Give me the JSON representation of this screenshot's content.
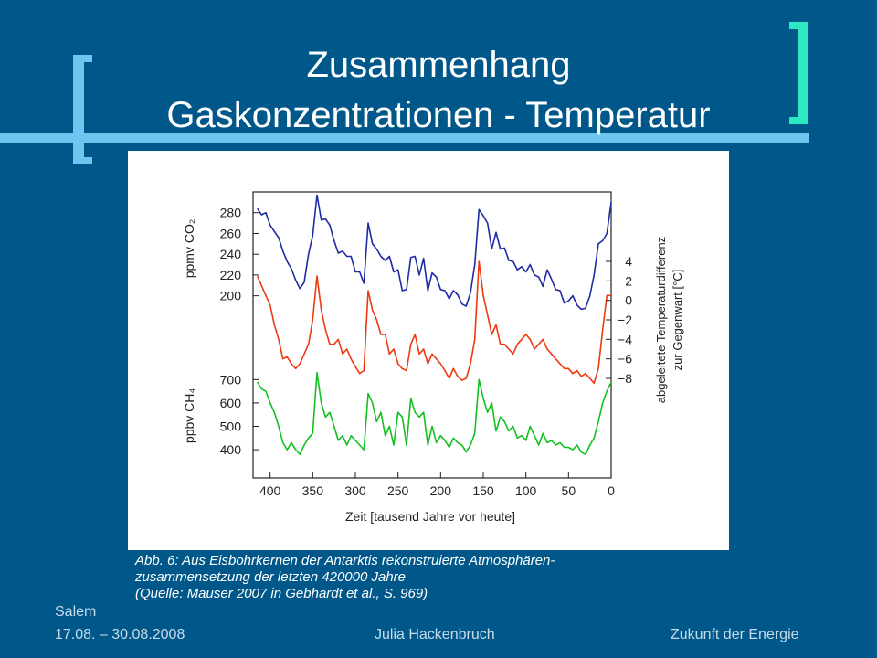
{
  "slide": {
    "title_line1": "Zusammenhang",
    "title_line2": "Gaskonzentrationen - Temperatur",
    "caption": [
      "Abb. 6: Aus Eisbohrkernen der Antarktis rekonstruierte Atmosphären-",
      "zusammensetzung der letzten 420000 Jahre",
      "(Quelle: Mauser 2007 in Gebhardt et al., S. 969)"
    ],
    "footer": {
      "place": "Salem",
      "date": "17.08. – 30.08.2008",
      "author": "Julia Hackenbruch",
      "topic": "Zukunft der Energie"
    },
    "colors": {
      "background": "#00578a",
      "title": "#ffffff",
      "bracket_left": "#6dc5f0",
      "bracket_right": "#2ee8c0"
    }
  },
  "chart_data": {
    "type": "line",
    "xlabel": "Zeit [tausend Jahre vor heute]",
    "x_ticks": [
      "400",
      "350",
      "300",
      "250",
      "200",
      "150",
      "100",
      "50",
      "0"
    ],
    "xlim": [
      0,
      420
    ],
    "x_reversed": true,
    "co2": {
      "ylabel": "ppmv CO₂",
      "ticks": [
        "280",
        "260",
        "240",
        "220",
        "200"
      ],
      "ylim": [
        190,
        300
      ],
      "color": "#1f2aa6",
      "x": [
        415,
        410,
        405,
        400,
        395,
        390,
        385,
        380,
        375,
        370,
        365,
        360,
        355,
        350,
        345,
        340,
        335,
        330,
        325,
        320,
        315,
        310,
        305,
        300,
        295,
        290,
        285,
        280,
        275,
        270,
        265,
        260,
        255,
        250,
        245,
        240,
        235,
        230,
        225,
        220,
        215,
        210,
        205,
        200,
        195,
        190,
        185,
        180,
        175,
        170,
        165,
        160,
        155,
        150,
        145,
        140,
        135,
        130,
        125,
        120,
        115,
        110,
        105,
        100,
        95,
        90,
        85,
        80,
        75,
        70,
        65,
        60,
        55,
        50,
        45,
        40,
        35,
        30,
        25,
        20,
        15,
        10,
        5,
        0
      ],
      "values": [
        284,
        278,
        280,
        268,
        262,
        256,
        243,
        233,
        226,
        215,
        207,
        213,
        240,
        258,
        297,
        273,
        274,
        268,
        253,
        241,
        243,
        238,
        238,
        223,
        223,
        212,
        270,
        250,
        245,
        238,
        234,
        238,
        223,
        225,
        205,
        206,
        237,
        238,
        220,
        236,
        205,
        222,
        218,
        206,
        205,
        197,
        205,
        201,
        192,
        190,
        203,
        230,
        283,
        277,
        270,
        245,
        261,
        245,
        246,
        234,
        233,
        225,
        228,
        223,
        230,
        220,
        218,
        209,
        225,
        216,
        206,
        205,
        193,
        195,
        200,
        191,
        187,
        188,
        200,
        220,
        250,
        253,
        260,
        290
      ]
    },
    "temperature": {
      "ylabel": "abgeleitete Temperaturdifferenz zur Gegenwart [°C]",
      "ticks": [
        "4",
        "2",
        "0",
        "-2",
        "-4",
        "-6",
        "-8"
      ],
      "ylim": [
        -9.5,
        5.5
      ],
      "color": "#ee3a10",
      "x": [
        415,
        410,
        405,
        400,
        395,
        390,
        385,
        380,
        375,
        370,
        365,
        360,
        355,
        350,
        345,
        340,
        335,
        330,
        325,
        320,
        315,
        310,
        305,
        300,
        295,
        290,
        285,
        280,
        275,
        270,
        265,
        260,
        255,
        250,
        245,
        240,
        235,
        230,
        225,
        220,
        215,
        210,
        205,
        200,
        195,
        190,
        185,
        180,
        175,
        170,
        165,
        160,
        155,
        150,
        145,
        140,
        135,
        130,
        125,
        120,
        115,
        110,
        105,
        100,
        95,
        90,
        85,
        80,
        75,
        70,
        65,
        60,
        55,
        50,
        45,
        40,
        35,
        30,
        25,
        20,
        15,
        10,
        5,
        0
      ],
      "values": [
        2.5,
        1.5,
        0.5,
        -0.5,
        -2.5,
        -4.0,
        -6.0,
        -5.8,
        -6.5,
        -7.0,
        -6.5,
        -5.5,
        -4.5,
        -2.0,
        2.5,
        -1.0,
        -3.0,
        -4.5,
        -4.5,
        -4.0,
        -5.5,
        -5.0,
        -6.0,
        -6.8,
        -7.5,
        -7.2,
        1.0,
        -1.0,
        -2.0,
        -3.5,
        -3.5,
        -5.5,
        -5.0,
        -6.5,
        -7.0,
        -7.2,
        -4.5,
        -3.5,
        -5.5,
        -5.0,
        -6.5,
        -5.5,
        -6.0,
        -6.5,
        -7.2,
        -8.0,
        -7.0,
        -7.8,
        -8.2,
        -8.0,
        -6.5,
        -4.0,
        4.0,
        0.5,
        -1.5,
        -3.5,
        -2.5,
        -4.5,
        -4.5,
        -5.0,
        -5.5,
        -4.5,
        -4.0,
        -3.5,
        -4.0,
        -5.0,
        -4.5,
        -4.0,
        -5.0,
        -5.5,
        -6.0,
        -6.5,
        -7.0,
        -7.0,
        -7.5,
        -7.2,
        -7.8,
        -7.5,
        -8.0,
        -8.5,
        -7.0,
        -3.0,
        0.5,
        0.5
      ]
    },
    "ch4": {
      "ylabel": "ppbv CH₄",
      "ticks": [
        "700",
        "600",
        "500",
        "400"
      ],
      "ylim": [
        330,
        760
      ],
      "color": "#12c020",
      "x": [
        415,
        410,
        405,
        400,
        395,
        390,
        385,
        380,
        375,
        370,
        365,
        360,
        355,
        350,
        345,
        340,
        335,
        330,
        325,
        320,
        315,
        310,
        305,
        300,
        295,
        290,
        285,
        280,
        275,
        270,
        265,
        260,
        255,
        250,
        245,
        240,
        235,
        230,
        225,
        220,
        215,
        210,
        205,
        200,
        195,
        190,
        185,
        180,
        175,
        170,
        165,
        160,
        155,
        150,
        145,
        140,
        135,
        130,
        125,
        120,
        115,
        110,
        105,
        100,
        95,
        90,
        85,
        80,
        75,
        70,
        65,
        60,
        55,
        50,
        45,
        40,
        35,
        30,
        25,
        20,
        15,
        10,
        5,
        0
      ],
      "values": [
        690,
        660,
        650,
        600,
        560,
        500,
        430,
        400,
        430,
        400,
        380,
        420,
        450,
        470,
        730,
        600,
        540,
        560,
        500,
        440,
        460,
        420,
        460,
        440,
        420,
        400,
        640,
        600,
        520,
        560,
        460,
        500,
        420,
        560,
        540,
        420,
        620,
        560,
        540,
        560,
        420,
        500,
        430,
        460,
        440,
        410,
        450,
        430,
        420,
        390,
        420,
        470,
        700,
        620,
        560,
        600,
        480,
        540,
        520,
        480,
        500,
        450,
        460,
        440,
        500,
        460,
        420,
        470,
        430,
        440,
        420,
        430,
        410,
        410,
        400,
        420,
        390,
        380,
        420,
        450,
        520,
        600,
        650,
        690
      ]
    }
  }
}
